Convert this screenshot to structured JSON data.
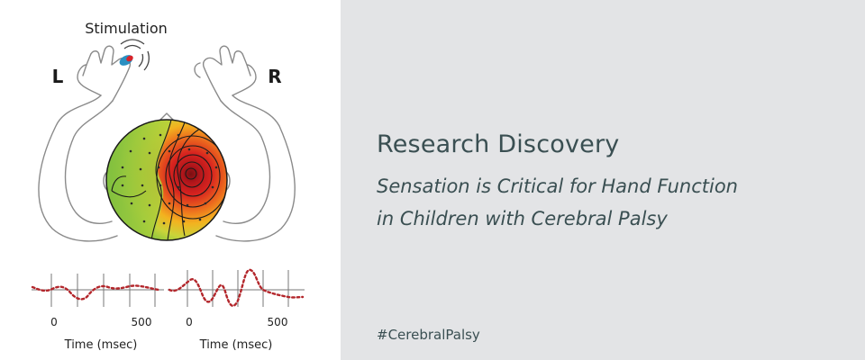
{
  "figure": {
    "stimulation_label": "Stimulation",
    "left_label": "L",
    "right_label": "R",
    "plots": [
      {
        "tick_labels": [
          "0",
          "500"
        ],
        "xlabel": "Time (msec)"
      },
      {
        "tick_labels": [
          "0",
          "500"
        ],
        "xlabel": "Time (msec)"
      }
    ],
    "colors": {
      "outline": "#8a8a8a",
      "trace": "#b3262b",
      "heatmap_cool": "#8cc63f",
      "heatmap_hot": "#d7231f",
      "heatmap_core": "#7a0f12"
    }
  },
  "text": {
    "headline": "Research Discovery",
    "subheadline_line1": "Sensation is Critical for Hand Function",
    "subheadline_line2": "in Children with Cerebral Palsy",
    "hashtag": "#CerebralPalsy"
  },
  "colors": {
    "text_panel_bg": "#e3e4e6",
    "text": "#3a4f52"
  }
}
